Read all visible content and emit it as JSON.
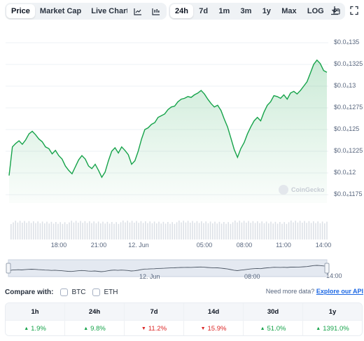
{
  "toolbar": {
    "view_tabs": [
      {
        "label": "Price",
        "active": true
      },
      {
        "label": "Market Cap",
        "active": false
      },
      {
        "label": "Live Chart",
        "active": false
      }
    ],
    "range_tabs": [
      {
        "label": "24h",
        "active": true
      },
      {
        "label": "7d",
        "active": false
      },
      {
        "label": "1m",
        "active": false
      },
      {
        "label": "3m",
        "active": false
      },
      {
        "label": "1y",
        "active": false
      },
      {
        "label": "Max",
        "active": false
      },
      {
        "label": "LOG",
        "active": false
      }
    ],
    "icons": [
      "external-link-icon",
      "line-chart-icon",
      "candlestick-icon",
      "calendar-icon",
      "download-icon",
      "fullscreen-icon"
    ]
  },
  "chart_data": {
    "type": "area",
    "y_axis_labels": [
      "$0.0₄135",
      "$0.0₄1325",
      "$0.0₄13",
      "$0.0₄1275",
      "$0.0₄125",
      "$0.0₄1225",
      "$0.0₄12",
      "$0.0₄1175"
    ],
    "x_axis_labels": [
      "18:00",
      "21:00",
      "12. Jun",
      "05:00",
      "08:00",
      "11:00",
      "14:00"
    ],
    "navigator_labels": [
      "12. Jun",
      "08:00",
      "14:00"
    ],
    "ylim": [
      1.175e-05,
      1.35e-05
    ],
    "line_color": "#16a34a",
    "grid": true,
    "y_unit_note": "values in units of 0.0000 (0.0₄ notation)",
    "series": [
      {
        "values": [
          1.197,
          1.23,
          1.234,
          1.237,
          1.233,
          1.238,
          1.245,
          1.248,
          1.244,
          1.239,
          1.236,
          1.23,
          1.228,
          1.222,
          1.226,
          1.22,
          1.216,
          1.208,
          1.203,
          1.199,
          1.207,
          1.215,
          1.22,
          1.216,
          1.208,
          1.205,
          1.21,
          1.203,
          1.195,
          1.201,
          1.214,
          1.225,
          1.229,
          1.223,
          1.23,
          1.226,
          1.221,
          1.21,
          1.214,
          1.225,
          1.239,
          1.25,
          1.252,
          1.256,
          1.258,
          1.264,
          1.266,
          1.268,
          1.273,
          1.276,
          1.277,
          1.282,
          1.285,
          1.286,
          1.288,
          1.287,
          1.29,
          1.292,
          1.295,
          1.291,
          1.285,
          1.28,
          1.276,
          1.278,
          1.272,
          1.262,
          1.253,
          1.24,
          1.227,
          1.218,
          1.228,
          1.235,
          1.245,
          1.253,
          1.26,
          1.264,
          1.26,
          1.27,
          1.278,
          1.282,
          1.289,
          1.288,
          1.286,
          1.29,
          1.285,
          1.292,
          1.294,
          1.291,
          1.295,
          1.3,
          1.305,
          1.315,
          1.325,
          1.33,
          1.326,
          1.318,
          1.316
        ]
      }
    ]
  },
  "watermark": "CoinGecko",
  "compare": {
    "label": "Compare with:",
    "options": [
      "BTC",
      "ETH"
    ],
    "api_text": "Need more data?",
    "api_link": "Explore our API"
  },
  "performance": [
    {
      "period": "1h",
      "value": "1.9%",
      "dir": "up"
    },
    {
      "period": "24h",
      "value": "9.8%",
      "dir": "up"
    },
    {
      "period": "7d",
      "value": "11.2%",
      "dir": "down"
    },
    {
      "period": "14d",
      "value": "15.9%",
      "dir": "down"
    },
    {
      "period": "30d",
      "value": "51.0%",
      "dir": "up"
    },
    {
      "period": "1y",
      "value": "1391.0%",
      "dir": "up"
    }
  ]
}
